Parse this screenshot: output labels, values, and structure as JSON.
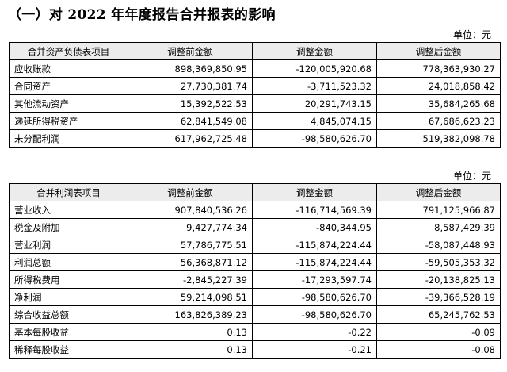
{
  "heading": "（一）对 2022 年年度报告合并报表的影响",
  "balance_sheet": {
    "unit": "单位：元",
    "headers": [
      "合并资产负债表项目",
      "调整前金额",
      "调整金额",
      "调整后金额"
    ],
    "rows": [
      [
        "应收账款",
        "898,369,850.95",
        "-120,005,920.68",
        "778,363,930.27"
      ],
      [
        "合同资产",
        "27,730,381.74",
        "-3,711,523.32",
        "24,018,858.42"
      ],
      [
        "其他流动资产",
        "15,392,522.53",
        "20,291,743.15",
        "35,684,265.68"
      ],
      [
        "递延所得税资产",
        "62,841,549.08",
        "4,845,074.15",
        "67,686,623.23"
      ],
      [
        "未分配利润",
        "617,962,725.48",
        "-98,580,626.70",
        "519,382,098.78"
      ]
    ]
  },
  "income_statement": {
    "unit": "单位：元",
    "headers": [
      "合并利润表项目",
      "调整前金额",
      "调整金额",
      "调整后金额"
    ],
    "rows": [
      [
        "营业收入",
        "907,840,536.26",
        "-116,714,569.39",
        "791,125,966.87"
      ],
      [
        "税金及附加",
        "9,427,774.34",
        "-840,344.95",
        "8,587,429.39"
      ],
      [
        "营业利润",
        "57,786,775.51",
        "-115,874,224.44",
        "-58,087,448.93"
      ],
      [
        "利润总额",
        "56,368,871.12",
        "-115,874,224.44",
        "-59,505,353.32"
      ],
      [
        "所得税费用",
        "-2,845,227.39",
        "-17,293,597.74",
        "-20,138,825.13"
      ],
      [
        "净利润",
        "59,214,098.51",
        "-98,580,626.70",
        "-39,366,528.19"
      ],
      [
        "综合收益总额",
        "163,826,389.23",
        "-98,580,626.70",
        "65,245,762.53"
      ],
      [
        "基本每股收益",
        "0.13",
        "-0.22",
        "-0.09"
      ],
      [
        "稀释每股收益",
        "0.13",
        "-0.21",
        "-0.08"
      ]
    ]
  }
}
